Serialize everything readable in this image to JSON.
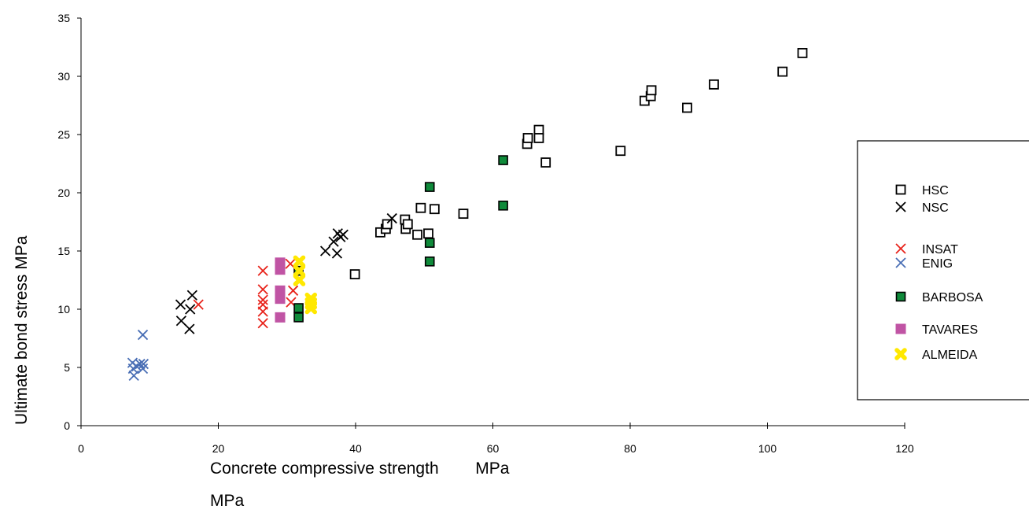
{
  "chart_data": {
    "type": "scatter",
    "title": "",
    "xlabel": "Concrete compressive strength        MPa",
    "xlabel_extra": "MPa",
    "ylabel": "Ultimate bond stress   MPa",
    "xlim": [
      0,
      120
    ],
    "ylim": [
      0,
      35
    ],
    "x_ticks": [
      0,
      20,
      40,
      60,
      80,
      100,
      120
    ],
    "y_ticks": [
      0,
      5,
      10,
      15,
      20,
      25,
      30,
      35
    ],
    "grid": false,
    "legend_position": "right",
    "series": [
      {
        "name": "HSC",
        "marker": "open-square",
        "color": "#000000",
        "points": [
          [
            39.9,
            13.0
          ],
          [
            43.6,
            16.6
          ],
          [
            44.4,
            16.9
          ],
          [
            44.6,
            17.3
          ],
          [
            47.2,
            17.7
          ],
          [
            47.3,
            16.9
          ],
          [
            47.6,
            17.3
          ],
          [
            49.0,
            16.4
          ],
          [
            49.5,
            18.7
          ],
          [
            50.6,
            16.5
          ],
          [
            51.5,
            18.6
          ],
          [
            55.7,
            18.2
          ],
          [
            65.0,
            24.2
          ],
          [
            65.1,
            24.7
          ],
          [
            66.7,
            25.4
          ],
          [
            66.7,
            24.7
          ],
          [
            67.7,
            22.6
          ],
          [
            78.6,
            23.6
          ],
          [
            82.1,
            27.9
          ],
          [
            83.0,
            28.3
          ],
          [
            83.1,
            28.8
          ],
          [
            88.3,
            27.3
          ],
          [
            92.2,
            29.3
          ],
          [
            102.2,
            30.4
          ],
          [
            105.1,
            32.0
          ]
        ]
      },
      {
        "name": "NSC",
        "marker": "x",
        "color": "#000000",
        "points": [
          [
            14.5,
            10.4
          ],
          [
            14.6,
            9.0
          ],
          [
            15.8,
            8.3
          ],
          [
            15.9,
            10.0
          ],
          [
            16.2,
            11.2
          ],
          [
            35.6,
            15.0
          ],
          [
            36.8,
            15.8
          ],
          [
            37.3,
            14.8
          ],
          [
            37.4,
            16.5
          ],
          [
            37.8,
            16.2
          ],
          [
            38.2,
            16.4
          ],
          [
            45.3,
            17.8
          ]
        ]
      },
      {
        "name": "INSAT",
        "marker": "x",
        "color": "#e8231b",
        "points": [
          [
            17.1,
            10.4
          ],
          [
            26.5,
            13.3
          ],
          [
            26.5,
            11.7
          ],
          [
            26.5,
            10.8
          ],
          [
            26.5,
            10.4
          ],
          [
            26.5,
            9.8
          ],
          [
            26.5,
            8.8
          ],
          [
            30.5,
            13.9
          ],
          [
            30.6,
            10.6
          ],
          [
            30.9,
            11.6
          ]
        ]
      },
      {
        "name": "ENIG",
        "marker": "x",
        "color": "#4a6fb5",
        "points": [
          [
            7.5,
            5.4
          ],
          [
            7.6,
            4.9
          ],
          [
            7.7,
            4.3
          ],
          [
            8.1,
            5.1
          ],
          [
            8.6,
            5.3
          ],
          [
            9.0,
            4.9
          ],
          [
            9.1,
            5.3
          ],
          [
            9.0,
            7.8
          ]
        ]
      },
      {
        "name": "BARBOSA",
        "marker": "filled-square",
        "color": "#0f8a3a",
        "points": [
          [
            31.7,
            13.3
          ],
          [
            31.7,
            10.1
          ],
          [
            31.7,
            9.3
          ],
          [
            50.8,
            20.5
          ],
          [
            50.8,
            15.7
          ],
          [
            50.8,
            14.1
          ],
          [
            61.5,
            22.8
          ],
          [
            61.5,
            18.9
          ]
        ]
      },
      {
        "name": "TAVARES",
        "marker": "filled-square",
        "color": "#c054a4",
        "points": [
          [
            29.0,
            14.0
          ],
          [
            29.0,
            13.4
          ],
          [
            29.0,
            11.6
          ],
          [
            29.0,
            10.9
          ],
          [
            29.0,
            9.3
          ]
        ]
      },
      {
        "name": "ALMEIDA",
        "marker": "filled-cross",
        "color": "#ffe800",
        "points": [
          [
            31.8,
            14.1
          ],
          [
            31.8,
            12.5
          ],
          [
            33.5,
            10.9
          ],
          [
            33.5,
            10.5
          ],
          [
            33.5,
            10.1
          ],
          [
            31.8,
            13.3
          ]
        ]
      }
    ]
  }
}
